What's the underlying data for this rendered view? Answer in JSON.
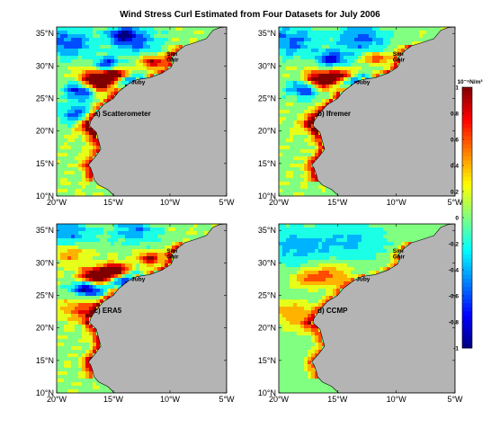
{
  "chart_data": {
    "type": "heatmap",
    "title": "Wind Stress Curl Estimated from Four Datasets for July 2006",
    "colorbar": {
      "unit_label": "10⁻⁶N/m³",
      "min": -1,
      "max": 1,
      "ticks": [
        "1",
        "0.8",
        "0.6",
        "0.4",
        "0.2",
        "0",
        "-0.2",
        "-0.4",
        "-0.6",
        "-0.8",
        "-1"
      ],
      "colormap": "jet"
    },
    "x_ticks": [
      "20°W",
      "15°W",
      "10°W",
      "5°W"
    ],
    "y_ticks": [
      "35°N",
      "30°N",
      "25°N",
      "20°N",
      "15°N",
      "10°N"
    ],
    "x_range": [
      -20,
      -5
    ],
    "y_range": [
      10,
      36
    ],
    "places": [
      "Sim",
      "Ghir",
      "Juby"
    ],
    "panels": [
      {
        "label": "a) Scatterometer"
      },
      {
        "label": "b) Ifremer"
      },
      {
        "label": "c) ERA5"
      },
      {
        "label": "d) CCMP"
      }
    ],
    "colors": {
      "land": "#b4b4b4",
      "ocean_base": "#8ef07c"
    }
  }
}
